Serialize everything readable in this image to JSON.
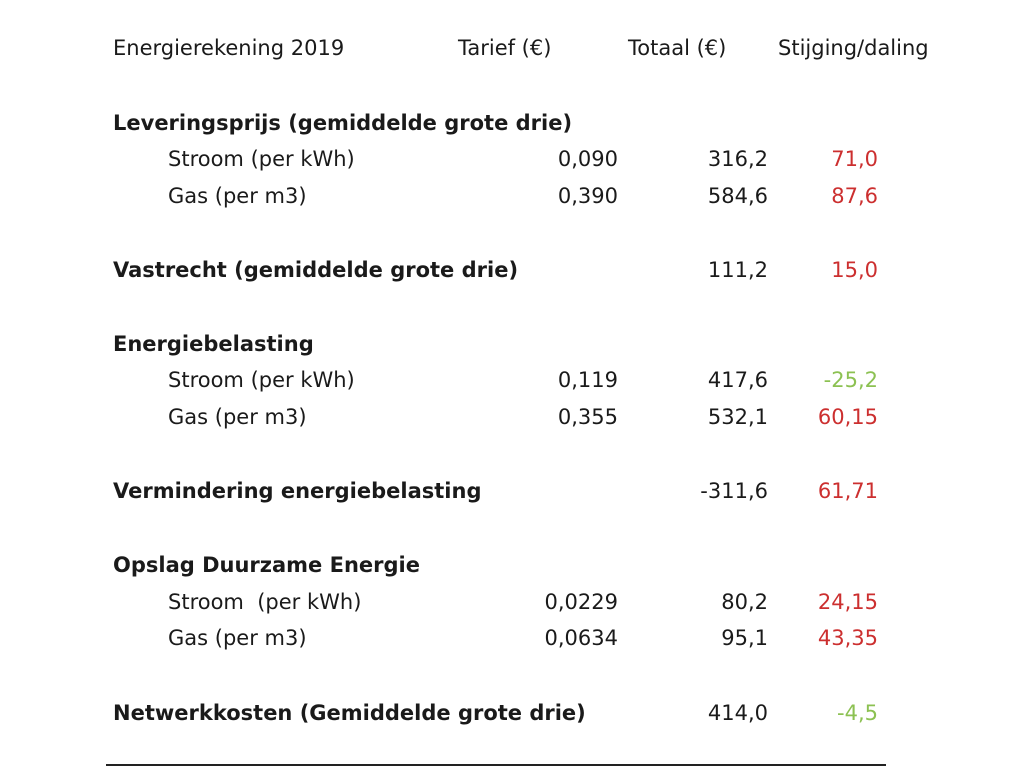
{
  "header": {
    "title": "Energierekening 2019",
    "col_tarief": "Tarief (€)",
    "col_totaal": "Totaal (€)",
    "col_change": "Stijging/daling"
  },
  "colors": {
    "increase": "#cc2f2f",
    "decrease": "#8cc152",
    "text": "#1a1a1a"
  },
  "sections": [
    {
      "title": "Leveringsprijs (gemiddelde grote drie)",
      "rows": [
        {
          "label": "Stroom (per kWh)",
          "tarief": "0,090",
          "totaal": "316,2",
          "change": "71,0",
          "direction": "increase"
        },
        {
          "label": "Gas (per m3)",
          "tarief": "0,390",
          "totaal": "584,6",
          "change": "87,6",
          "direction": "increase"
        }
      ]
    },
    {
      "title": "Vastrecht (gemiddelde grote drie)",
      "totaal": "111,2",
      "change": "15,0",
      "direction": "increase"
    },
    {
      "title": "Energiebelasting",
      "rows": [
        {
          "label": "Stroom (per kWh)",
          "tarief": "0,119",
          "totaal": "417,6",
          "change": "-25,2",
          "direction": "decrease"
        },
        {
          "label": "Gas (per m3)",
          "tarief": "0,355",
          "totaal": "532,1",
          "change": "60,15",
          "direction": "increase"
        }
      ]
    },
    {
      "title": "Vermindering energiebelasting",
      "totaal": "-311,6",
      "change": "61,71",
      "direction": "increase"
    },
    {
      "title": "Opslag Duurzame Energie",
      "rows": [
        {
          "label": "Stroom  (per kWh)",
          "tarief": "0,0229",
          "totaal": "80,2",
          "change": "24,15",
          "direction": "increase"
        },
        {
          "label": "Gas (per m3)",
          "tarief": "0,0634",
          "totaal": "95,1",
          "change": "43,35",
          "direction": "increase"
        }
      ]
    },
    {
      "title": "Netwerkkosten (Gemiddelde grote drie)",
      "totaal": "414,0",
      "change": "-4,5",
      "direction": "decrease"
    }
  ]
}
